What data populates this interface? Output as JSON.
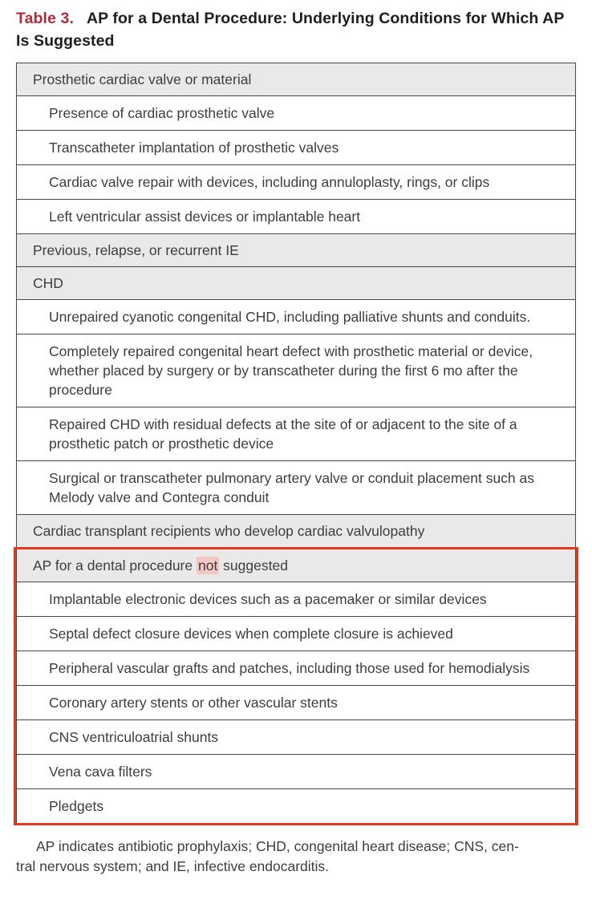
{
  "title": {
    "label": "Table 3.",
    "text": "AP for a Dental Procedure: Underlying Conditions for Which AP Is Suggested"
  },
  "table": {
    "rows": [
      {
        "style": "section",
        "text": "Prosthetic cardiac valve or material"
      },
      {
        "style": "item",
        "text": "Presence of cardiac prosthetic valve"
      },
      {
        "style": "item",
        "text": "Transcatheter implantation of prosthetic valves"
      },
      {
        "style": "item",
        "text": "Cardiac valve repair with devices, including annuloplasty, rings, or clips"
      },
      {
        "style": "item",
        "text": "Left ventricular assist devices or implantable heart"
      },
      {
        "style": "section",
        "text": "Previous, relapse, or recurrent IE"
      },
      {
        "style": "section",
        "text": "CHD"
      },
      {
        "style": "item",
        "text": "Unrepaired cyanotic congenital CHD, including palliative shunts and conduits."
      },
      {
        "style": "item",
        "text": "Completely repaired congenital heart defect with prosthetic material or device, whether placed by surgery or by transcatheter during the first 6 mo after the procedure"
      },
      {
        "style": "item",
        "text": "Repaired CHD with residual defects at the site of or adjacent to the site of a prosthetic patch or prosthetic device"
      },
      {
        "style": "item",
        "text": "Surgical or transcatheter pulmonary artery valve or conduit placement such as Melody valve and Contegra conduit"
      },
      {
        "style": "section",
        "text": "Cardiac transplant recipients who develop cardiac valvulopathy"
      }
    ],
    "boxed": {
      "header": {
        "pre": "AP for a dental procedure ",
        "highlight": "not",
        "post": " suggested"
      },
      "rows": [
        {
          "style": "item",
          "text": "Implantable electronic devices such as a pacemaker or similar devices"
        },
        {
          "style": "item",
          "text": "Septal defect closure devices when complete closure is achieved"
        },
        {
          "style": "item",
          "text": "Peripheral vascular grafts and patches, including those used for hemodialysis"
        },
        {
          "style": "item",
          "text": "Coronary artery stents or other vascular stents"
        },
        {
          "style": "item",
          "text": "CNS ventriculoatrial shunts"
        },
        {
          "style": "item",
          "text": "Vena cava filters"
        },
        {
          "style": "item",
          "text": "Pledgets"
        }
      ]
    }
  },
  "footnote": {
    "lines": [
      "AP indicates antibiotic prophylaxis; CHD, congenital heart disease; CNS, cen-",
      "tral nervous system; and IE, infective endocarditis."
    ]
  },
  "colors": {
    "title_red": "#b22b38",
    "box_border_red": "#e23b1e",
    "not_highlight_bg": "#f3c8c2",
    "section_row_bg": "#e9e9e9",
    "row_border": "#464646",
    "text": "#3d3d3d"
  }
}
